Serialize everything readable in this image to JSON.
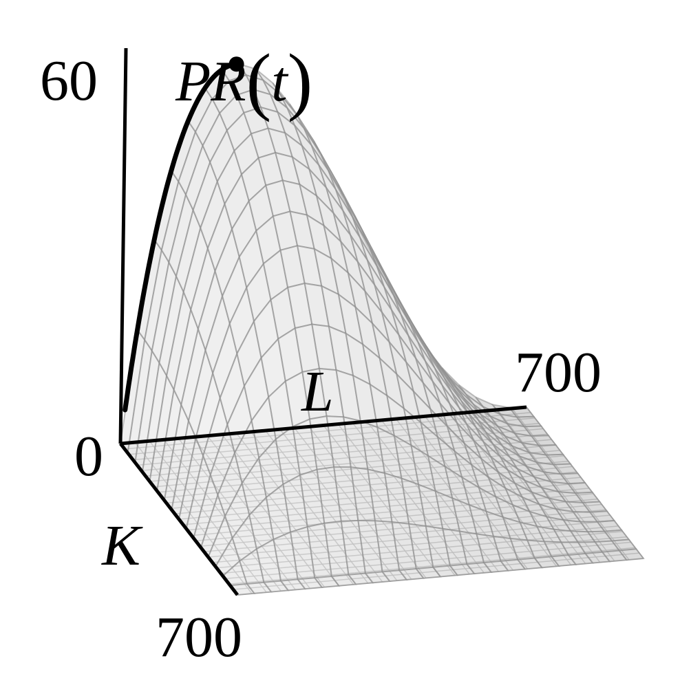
{
  "chart_data": {
    "type": "surface",
    "title": "",
    "zlabel": "PR(t)",
    "zlabel_parts": {
      "main": "PR",
      "open": "(",
      "arg": "t",
      "close": ")"
    },
    "xlabel": "L",
    "ylabel": "K",
    "zlim": [
      0,
      60
    ],
    "xlim": [
      0,
      700
    ],
    "ylim": [
      0,
      700
    ],
    "tick_labels": {
      "z_max": "60",
      "origin": "0",
      "x_max": "700",
      "y_max": "700"
    },
    "surface_peak": {
      "L": 200,
      "K": 0,
      "PR": 56
    },
    "trajectory": {
      "description_visible": false,
      "color": "#000000",
      "ends_at_peak": true
    },
    "colors": {
      "surface": "#d4d4d4",
      "mesh": "#8a8a8a",
      "axes": "#000000",
      "floor_grid": "#9a9a9a"
    }
  }
}
